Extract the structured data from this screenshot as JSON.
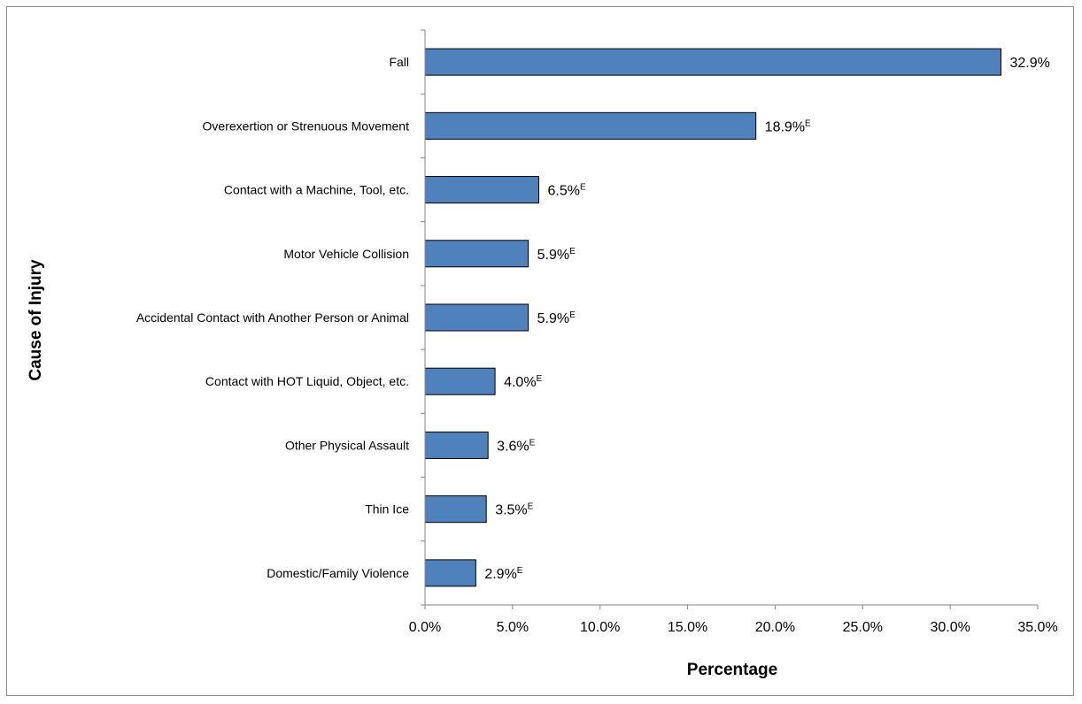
{
  "chart_data": {
    "type": "bar",
    "orientation": "horizontal",
    "title": "",
    "xlabel": "Percentage",
    "ylabel": "Cause of Injury",
    "xlim": [
      0,
      35
    ],
    "x_ticks": [
      "0.0%",
      "5.0%",
      "10.0%",
      "15.0%",
      "20.0%",
      "25.0%",
      "30.0%",
      "35.0%"
    ],
    "grid": false,
    "legend": "none",
    "bar_color": "#4f81bd",
    "categories": [
      "Fall",
      "Overexertion or Strenuous Movement",
      "Contact with a Machine, Tool, etc.",
      "Motor Vehicle Collision",
      "Accidental Contact with Another Person or Animal",
      "Contact with HOT Liquid, Object, etc.",
      "Other Physical Assault",
      "Thin Ice",
      "Domestic/Family Violence"
    ],
    "values": [
      32.9,
      18.9,
      6.5,
      5.9,
      5.9,
      4.0,
      3.6,
      3.5,
      2.9
    ],
    "data_labels": [
      "32.9%",
      "18.9%",
      "6.5%",
      "5.9%",
      "5.9%",
      "4.0%",
      "3.6%",
      "3.5%",
      "2.9%"
    ],
    "data_label_flags": [
      "",
      "E",
      "E",
      "E",
      "E",
      "E",
      "E",
      "E",
      "E"
    ]
  }
}
